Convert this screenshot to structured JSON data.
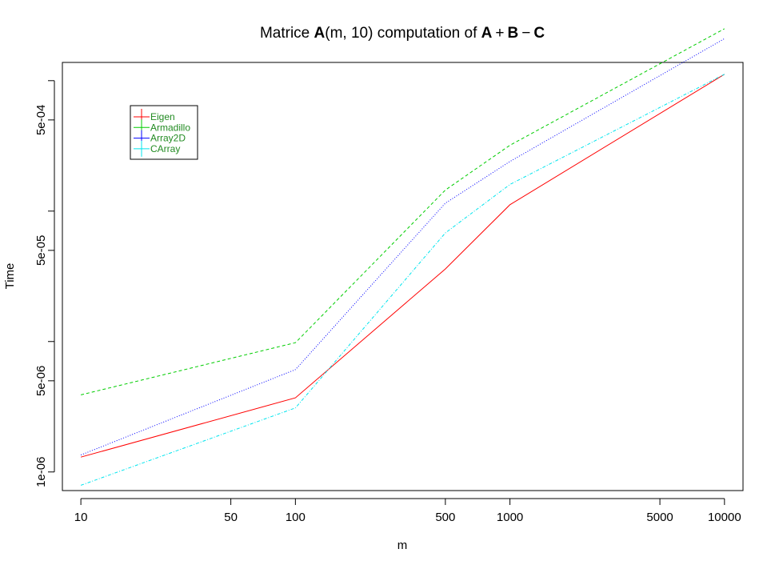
{
  "chart_data": {
    "type": "line",
    "title": {
      "prefix": "Matrice ",
      "A": "A",
      "args": "(m, 10)",
      "middle": " computation of ",
      "B": "B",
      "C": "C",
      "plus": "+",
      "minus": "−"
    },
    "xlabel": "m",
    "ylabel": "Time",
    "x_scale": "log",
    "y_scale": "log",
    "xlim": [
      8.2,
      12200
    ],
    "ylim": [
      7.2e-07,
      0.00138
    ],
    "x_ticks": [
      {
        "value": 10,
        "label": "10"
      },
      {
        "value": 50,
        "label": "50"
      },
      {
        "value": 100,
        "label": "100"
      },
      {
        "value": 500,
        "label": "500"
      },
      {
        "value": 1000,
        "label": "1000"
      },
      {
        "value": 5000,
        "label": "5000"
      },
      {
        "value": 10000,
        "label": "10000"
      }
    ],
    "y_ticks": [
      {
        "value": 1e-06,
        "label": "1e-06"
      },
      {
        "value": 5e-06,
        "label": "5e-06"
      },
      {
        "value": 1e-05,
        "label": ""
      },
      {
        "value": 5e-05,
        "label": "5e-05"
      },
      {
        "value": 0.0001,
        "label": ""
      },
      {
        "value": 0.0005,
        "label": "5e-04"
      },
      {
        "value": 0.001,
        "label": ""
      }
    ],
    "x": [
      10,
      100,
      500,
      1000,
      10000
    ],
    "series": [
      {
        "name": "Eigen",
        "color": "#ff0000",
        "dash": "",
        "values": [
          1.3e-06,
          3.7e-06,
          3.6e-05,
          0.000112,
          0.00112
        ]
      },
      {
        "name": "Armadillo",
        "color": "#00cd00",
        "dash": "4,3",
        "values": [
          3.9e-06,
          9.8e-06,
          0.000145,
          0.00032,
          0.0025
        ]
      },
      {
        "name": "Array2D",
        "color": "#0000ff",
        "dash": "1,2",
        "values": [
          1.35e-06,
          6.1e-06,
          0.000115,
          0.00024,
          0.0021
        ]
      },
      {
        "name": "CArray",
        "color": "#00e5ee",
        "dash": "4,2,1,2",
        "values": [
          7.9e-07,
          3.1e-06,
          6.8e-05,
          0.00016,
          0.00112
        ]
      }
    ],
    "legend": {
      "position": "top-left"
    },
    "grid": false
  }
}
